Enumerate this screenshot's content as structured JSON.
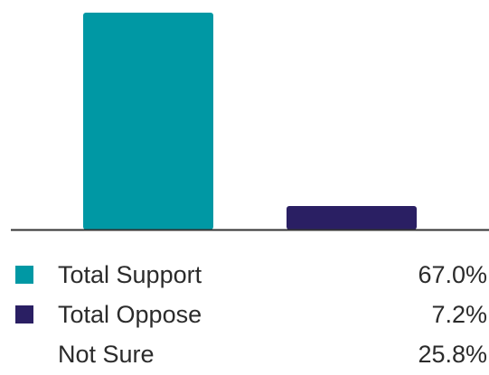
{
  "chart_data": {
    "type": "bar",
    "categories": [
      "Total Support",
      "Total Oppose",
      "Not Sure"
    ],
    "values": [
      67.0,
      7.2,
      25.8
    ],
    "displayed_values": [
      "67.0%",
      "7.2%",
      "25.8%"
    ],
    "colors": [
      "#0098a4",
      "#2a1f63",
      "transparent"
    ],
    "bars_drawn": [
      "Total Support",
      "Total Oppose"
    ],
    "ylim": [
      0,
      70
    ],
    "grid": false,
    "legend_position": "bottom"
  },
  "legend": {
    "items": [
      {
        "label": "Total Support",
        "value": "67.0%",
        "color": "#0098a4"
      },
      {
        "label": "Total Oppose",
        "value": "7.2%",
        "color": "#2a1f63"
      },
      {
        "label": "Not Sure",
        "value": "25.8%",
        "color": "transparent"
      }
    ]
  }
}
